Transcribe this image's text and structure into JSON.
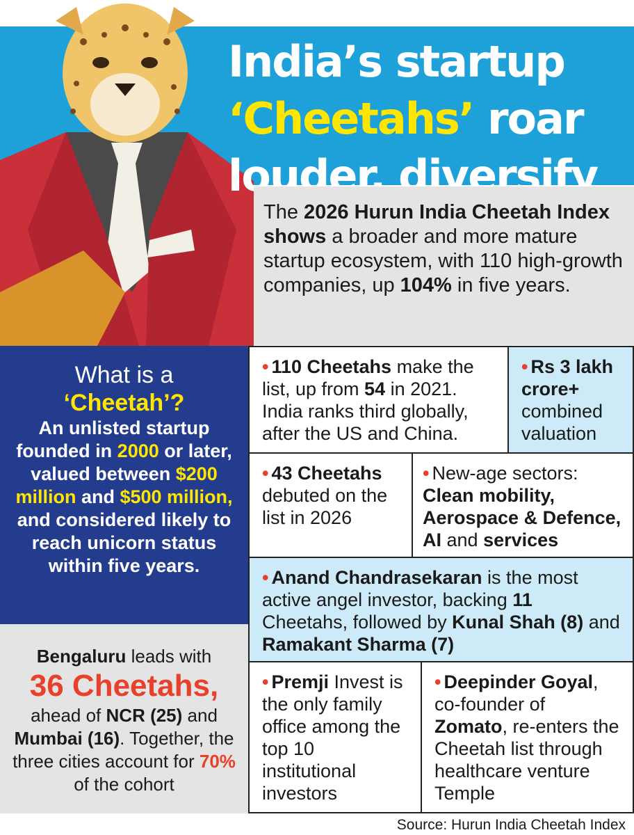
{
  "title": [
    "India’s startup",
    "‘Cheetahs’",
    " roar",
    "louder, diversify"
  ],
  "intro": [
    "The ",
    "2026 Hurun India Cheetah Index shows",
    " a broader and more mature startup ecosystem, with 110 high-growth companies, up ",
    "104%",
    " in five years."
  ],
  "definition": {
    "heading": [
      "What is a",
      "‘Cheetah’?"
    ],
    "body": [
      "An unlisted startup founded in ",
      "2000",
      " or later, valued between ",
      "$200 million",
      " and ",
      "$500 million,",
      " and considered likely to reach unicorn status within five years."
    ]
  },
  "cities": [
    "Bengaluru",
    " leads with ",
    "36 Cheetahs,",
    " ahead of ",
    "NCR (25)",
    " and ",
    "Mumbai (16)",
    ". Together, the three cities account for ",
    "70%",
    " of the cohort"
  ],
  "facts": [
    [
      "110 Cheetahs",
      " make the list, up from ",
      "54",
      " in 2021. India ranks third globally, after the US and China."
    ],
    [
      "Rs 3 lakh crore+",
      " combined valuation"
    ],
    [
      "43 Cheetahs",
      " debuted on the list in 2026"
    ],
    [
      "New-age sectors: ",
      "Clean mobility, Aerospace & Defence, AI",
      " and ",
      "services"
    ],
    [
      "Anand Chandrasekaran",
      " is the most active angel investor, backing ",
      "11",
      " Cheetahs, followed by ",
      "Kunal Shah (8)",
      " and ",
      "Ramakant Sharma (7)"
    ],
    [
      "Premji",
      " Invest is the only family office among the top 10 institutional investors"
    ],
    [
      "Deepinder Goyal",
      ", co-founder of ",
      "Zomato",
      ", re-enters the Cheetah list through healthcare venture Temple"
    ]
  ],
  "source": "Source: Hurun India Cheetah Index"
}
